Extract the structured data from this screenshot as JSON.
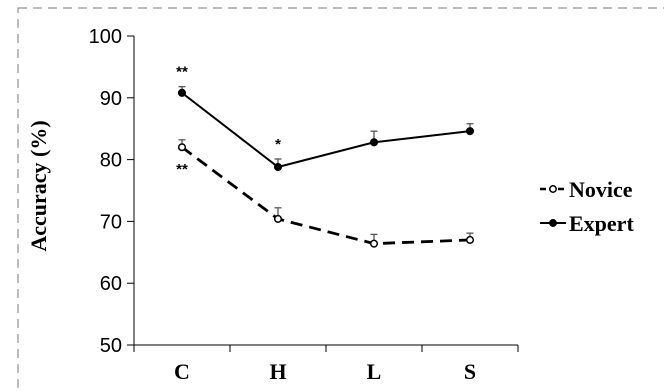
{
  "chart_data": {
    "type": "line",
    "categories": [
      "C",
      "H",
      "L",
      "S"
    ],
    "ylabel": "Accuracy (%)",
    "xlabel": "",
    "ylim": [
      50,
      100
    ],
    "yticks": [
      50,
      60,
      70,
      80,
      90,
      100
    ],
    "grid": false,
    "legend_position": "right",
    "series": [
      {
        "name": "Novice",
        "values": [
          82,
          70.4,
          66.4,
          67
        ],
        "errors": [
          1.2,
          1.8,
          1.5,
          1.1
        ],
        "line_style": "dashed",
        "marker": "open-circle",
        "color": "#000000"
      },
      {
        "name": "Expert",
        "values": [
          90.8,
          78.8,
          82.8,
          84.6
        ],
        "errors": [
          1.0,
          1.3,
          1.8,
          1.2
        ],
        "line_style": "solid",
        "marker": "filled-circle",
        "color": "#000000"
      }
    ],
    "annotations": [
      {
        "category": "C",
        "text": "**",
        "anchor": "expert-above"
      },
      {
        "category": "C",
        "text": "**",
        "anchor": "novice-below"
      },
      {
        "category": "H",
        "text": "*",
        "anchor": "expert-above"
      }
    ]
  }
}
